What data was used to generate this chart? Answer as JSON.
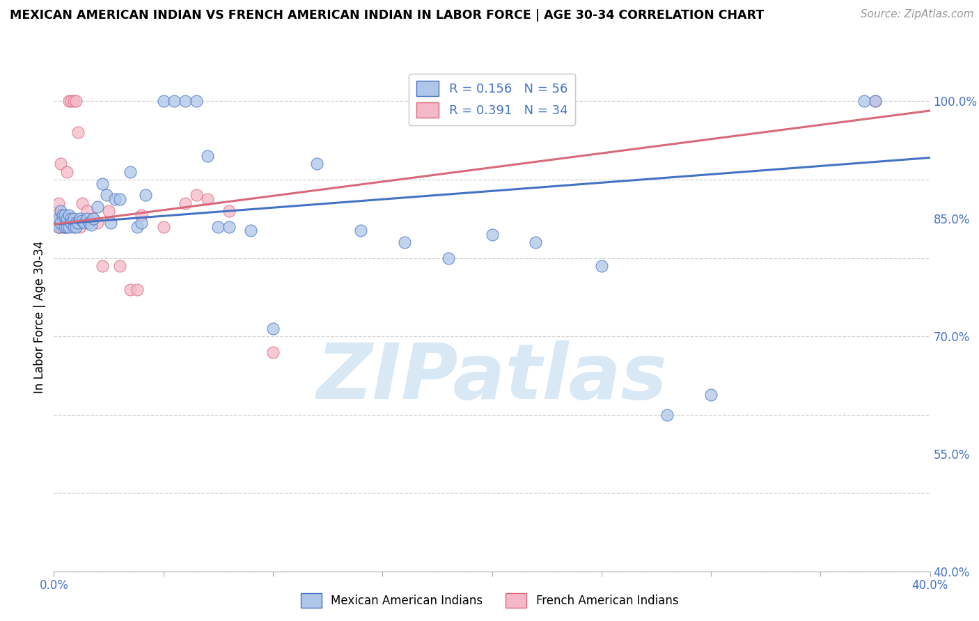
{
  "title": "MEXICAN AMERICAN INDIAN VS FRENCH AMERICAN INDIAN IN LABOR FORCE | AGE 30-34 CORRELATION CHART",
  "source": "Source: ZipAtlas.com",
  "ylabel": "In Labor Force | Age 30-34",
  "xlim": [
    0.0,
    0.4
  ],
  "ylim": [
    0.4,
    1.05
  ],
  "xticks": [
    0.0,
    0.05,
    0.1,
    0.15,
    0.2,
    0.25,
    0.3,
    0.35,
    0.4
  ],
  "xtick_labels": [
    "0.0%",
    "",
    "",
    "",
    "",
    "",
    "",
    "",
    "40.0%"
  ],
  "yticks": [
    0.4,
    0.55,
    0.7,
    0.85,
    1.0
  ],
  "ytick_labels": [
    "40.0%",
    "55.0%",
    "70.0%",
    "85.0%",
    "100.0%"
  ],
  "blue_R": 0.156,
  "blue_N": 56,
  "pink_R": 0.391,
  "pink_N": 34,
  "blue_label": "Mexican American Indians",
  "pink_label": "French American Indians",
  "blue_color": "#aec6e8",
  "pink_color": "#f5b8c8",
  "blue_line_color": "#4472c4",
  "pink_line_color": "#d9687a",
  "axis_color": "#4472c4",
  "grid_color": "#cccccc",
  "watermark": "ZIPatlas",
  "watermark_color": "#d8e8f5",
  "blue_x": [
    0.001,
    0.002,
    0.002,
    0.003,
    0.003,
    0.004,
    0.005,
    0.005,
    0.006,
    0.006,
    0.007,
    0.007,
    0.008,
    0.008,
    0.009,
    0.009,
    0.01,
    0.01,
    0.011,
    0.012,
    0.013,
    0.014,
    0.015,
    0.016,
    0.017,
    0.018,
    0.02,
    0.022,
    0.024,
    0.026,
    0.028,
    0.03,
    0.035,
    0.038,
    0.04,
    0.042,
    0.05,
    0.055,
    0.06,
    0.065,
    0.07,
    0.075,
    0.08,
    0.09,
    0.1,
    0.12,
    0.14,
    0.16,
    0.18,
    0.2,
    0.22,
    0.25,
    0.28,
    0.3,
    0.37,
    0.375
  ],
  "blue_y": [
    0.845,
    0.84,
    0.85,
    0.845,
    0.86,
    0.855,
    0.84,
    0.855,
    0.85,
    0.84,
    0.84,
    0.855,
    0.85,
    0.845,
    0.84,
    0.85,
    0.845,
    0.84,
    0.845,
    0.85,
    0.848,
    0.845,
    0.85,
    0.845,
    0.842,
    0.85,
    0.865,
    0.895,
    0.88,
    0.845,
    0.875,
    0.875,
    0.91,
    0.84,
    0.845,
    0.88,
    1.0,
    1.0,
    1.0,
    1.0,
    0.93,
    0.84,
    0.84,
    0.835,
    0.71,
    0.92,
    0.835,
    0.82,
    0.8,
    0.83,
    0.82,
    0.79,
    0.6,
    0.625,
    1.0,
    1.0
  ],
  "pink_x": [
    0.001,
    0.001,
    0.002,
    0.002,
    0.003,
    0.003,
    0.004,
    0.004,
    0.005,
    0.005,
    0.006,
    0.007,
    0.008,
    0.009,
    0.01,
    0.011,
    0.012,
    0.013,
    0.015,
    0.018,
    0.02,
    0.022,
    0.025,
    0.03,
    0.035,
    0.038,
    0.04,
    0.05,
    0.06,
    0.065,
    0.07,
    0.08,
    0.1,
    0.375
  ],
  "pink_y": [
    0.845,
    0.855,
    0.84,
    0.87,
    0.84,
    0.92,
    0.84,
    0.85,
    0.84,
    0.85,
    0.91,
    1.0,
    1.0,
    1.0,
    1.0,
    0.96,
    0.84,
    0.87,
    0.86,
    0.85,
    0.845,
    0.79,
    0.86,
    0.79,
    0.76,
    0.76,
    0.855,
    0.84,
    0.87,
    0.88,
    0.875,
    0.86,
    0.68,
    1.0
  ],
  "blue_trend_x": [
    0.0,
    0.4
  ],
  "blue_trend_y": [
    0.843,
    0.928
  ],
  "pink_trend_x": [
    0.0,
    0.4
  ],
  "pink_trend_y": [
    0.843,
    0.988
  ]
}
